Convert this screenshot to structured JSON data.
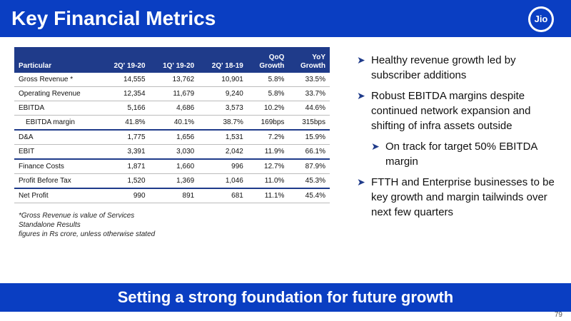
{
  "header": {
    "title": "Key Financial Metrics",
    "logo_text": "Jio"
  },
  "table": {
    "headers": [
      {
        "line1": "",
        "line2": "Particular"
      },
      {
        "line1": "",
        "line2": "2Q' 19-20"
      },
      {
        "line1": "",
        "line2": "1Q' 19-20"
      },
      {
        "line1": "",
        "line2": "2Q' 18-19"
      },
      {
        "line1": "QoQ",
        "line2": "Growth"
      },
      {
        "line1": "YoY",
        "line2": "Growth"
      }
    ],
    "rows": [
      [
        "Gross Revenue *",
        "14,555",
        "13,762",
        "10,901",
        "5.8%",
        "33.5%"
      ],
      [
        "Operating Revenue",
        "12,354",
        "11,679",
        "9,240",
        "5.8%",
        "33.7%"
      ],
      [
        "EBITDA",
        "5,166",
        "4,686",
        "3,573",
        "10.2%",
        "44.6%"
      ],
      [
        "EBITDA margin",
        "41.8%",
        "40.1%",
        "38.7%",
        "169bps",
        "315bps"
      ],
      [
        "D&A",
        "1,775",
        "1,656",
        "1,531",
        "7.2%",
        "15.9%"
      ],
      [
        "EBIT",
        "3,391",
        "3,030",
        "2,042",
        "11.9%",
        "66.1%"
      ],
      [
        "Finance Costs",
        "1,871",
        "1,660",
        "996",
        "12.7%",
        "87.9%"
      ],
      [
        "Profit Before Tax",
        "1,520",
        "1,369",
        "1,046",
        "11.0%",
        "45.3%"
      ],
      [
        "Net Profit",
        "990",
        "891",
        "681",
        "11.1%",
        "45.4%"
      ]
    ]
  },
  "notes": [
    "*Gross Revenue is value of Services",
    "Standalone Results",
    "figures in Rs crore, unless otherwise stated"
  ],
  "bullets": [
    {
      "text": "Healthy revenue growth led by subscriber additions"
    },
    {
      "text": "Robust EBITDA margins despite continued network expansion and shifting of infra assets outside"
    },
    {
      "text": "On track for target 50% EBITDA margin"
    },
    {
      "text": "FTTH and Enterprise businesses to be key growth and margin tailwinds over next few quarters"
    }
  ],
  "footer": {
    "tagline": "Setting a strong foundation for future growth"
  },
  "page_number": "79",
  "colors": {
    "brand_blue": "#0a3ec2",
    "table_header": "#1f3b8a",
    "text": "#111111"
  }
}
